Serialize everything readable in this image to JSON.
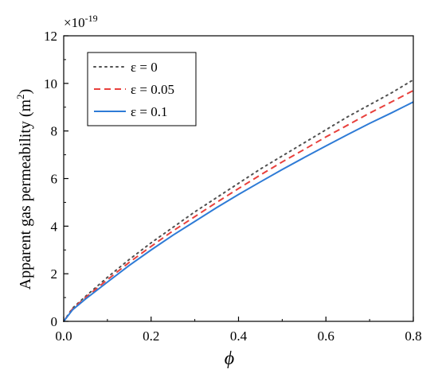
{
  "chart_data": {
    "type": "line",
    "title": "",
    "xlabel": "ϕ",
    "ylabel": "Apparent gas permeability",
    "ylabel_unit_base": "(m",
    "ylabel_unit_exp": "2",
    "ylabel_unit_close": ")",
    "y_multiplier_base": "×10",
    "y_multiplier_exp": "-19",
    "xlim": [
      0,
      0.8
    ],
    "ylim": [
      0,
      12
    ],
    "xticks": [
      0.0,
      0.2,
      0.4,
      0.6,
      0.8
    ],
    "xtick_labels": [
      "0.0",
      "0.2",
      "0.4",
      "0.6",
      "0.8"
    ],
    "yticks": [
      0,
      2,
      4,
      6,
      8,
      10,
      12
    ],
    "ytick_labels": [
      "0",
      "2",
      "4",
      "6",
      "8",
      "10",
      "12"
    ],
    "grid": false,
    "legend_position": "top-left",
    "x": [
      0,
      0.02,
      0.05,
      0.1,
      0.15,
      0.2,
      0.25,
      0.3,
      0.35,
      0.4,
      0.45,
      0.5,
      0.55,
      0.6,
      0.65,
      0.7,
      0.75,
      0.8
    ],
    "series": [
      {
        "name": "ε = 0",
        "color": "#505050",
        "style": "dotted",
        "values": [
          0,
          0.55,
          1.05,
          1.85,
          2.6,
          3.3,
          3.95,
          4.6,
          5.2,
          5.8,
          6.4,
          6.95,
          7.5,
          8.05,
          8.6,
          9.1,
          9.6,
          10.15
        ]
      },
      {
        "name": "ε = 0.05",
        "color": "#e8403c",
        "style": "dashed",
        "values": [
          0,
          0.52,
          1.0,
          1.75,
          2.48,
          3.15,
          3.8,
          4.4,
          5.0,
          5.58,
          6.15,
          6.7,
          7.22,
          7.75,
          8.25,
          8.75,
          9.22,
          9.7
        ]
      },
      {
        "name": "ε = 0.1",
        "color": "#2e7bd6",
        "style": "solid",
        "values": [
          0,
          0.48,
          0.94,
          1.65,
          2.35,
          3.0,
          3.62,
          4.2,
          4.78,
          5.33,
          5.86,
          6.38,
          6.88,
          7.37,
          7.85,
          8.32,
          8.76,
          9.22
        ]
      }
    ]
  }
}
